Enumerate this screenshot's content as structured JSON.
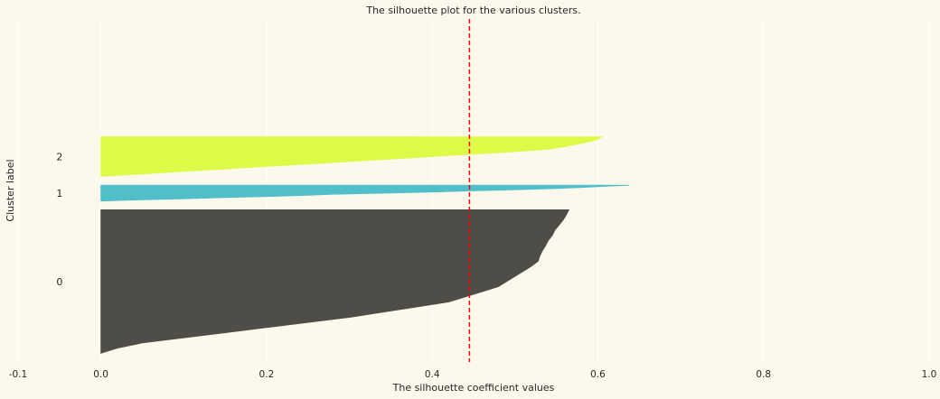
{
  "chart_data": {
    "type": "area",
    "title": "The silhouette plot for the various clusters.",
    "xlabel": "The silhouette coefficient values",
    "ylabel": "Cluster label",
    "xlim": [
      -0.1,
      1.0
    ],
    "ylim": [
      0,
      390
    ],
    "xticks": [
      "-0.1",
      "0.0",
      "0.2",
      "0.4",
      "0.6",
      "0.8",
      "1.0"
    ],
    "xtick_values": [
      -0.1,
      0.0,
      0.2,
      0.4,
      0.6,
      0.8,
      1.0
    ],
    "grid": true,
    "average_silhouette": 0.445,
    "clusters": [
      {
        "label": "0",
        "color": "#4b4a44",
        "y_lower": 10,
        "y_upper": 173,
        "values": [
          0.565,
          0.562,
          0.558,
          0.553,
          0.548,
          0.545,
          0.54,
          0.537,
          0.533,
          0.53,
          0.528,
          0.52,
          0.51,
          0.5,
          0.49,
          0.48,
          0.46,
          0.44,
          0.42,
          0.38,
          0.34,
          0.3,
          0.25,
          0.2,
          0.15,
          0.1,
          0.05,
          0.02,
          0.0
        ]
      },
      {
        "label": "1",
        "color": "#4dbec9",
        "y_lower": 183,
        "y_upper": 201,
        "values": [
          0.638,
          0.61,
          0.58,
          0.55,
          0.5,
          0.45,
          0.4,
          0.35,
          0.28,
          0.25,
          0.2,
          0.15,
          0.1,
          0.05,
          0.0
        ]
      },
      {
        "label": "2",
        "color": "#dcfb44",
        "y_lower": 211,
        "y_upper": 256,
        "values": [
          0.605,
          0.6,
          0.59,
          0.575,
          0.56,
          0.54,
          0.5,
          0.45,
          0.4,
          0.35,
          0.3,
          0.25,
          0.2,
          0.15,
          0.1,
          0.05,
          0.0
        ]
      }
    ]
  }
}
